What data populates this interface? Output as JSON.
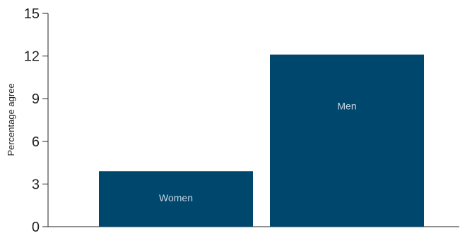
{
  "chart_data": {
    "type": "bar",
    "categories": [
      "Women",
      "Men"
    ],
    "values": [
      3.9,
      12.1
    ],
    "ylabel": "Percentage agree",
    "xlabel": "",
    "ylim": [
      0,
      15
    ],
    "yticks": [
      "0",
      "3",
      "6",
      "9",
      "12",
      "15"
    ],
    "bar_color": "#00476e",
    "bar_label_color": "#c9d6e3",
    "bar_label_position": "inside",
    "grid": false,
    "legend": "none"
  }
}
